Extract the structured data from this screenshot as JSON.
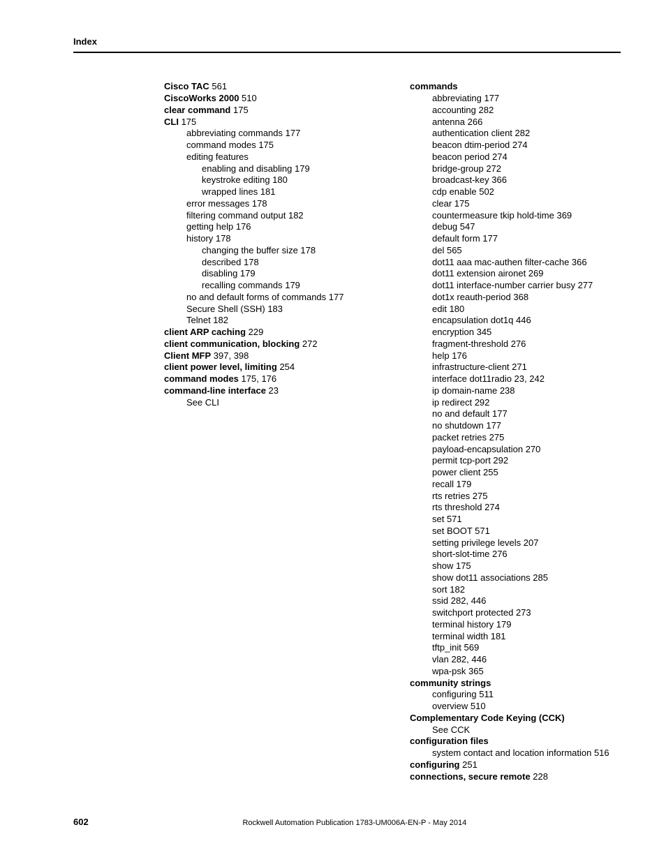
{
  "header": {
    "label": "Index"
  },
  "footer": {
    "page": "602",
    "publication": "Rockwell Automation Publication 1783-UM006A-EN-P - May 2014"
  },
  "col1": [
    {
      "bold": "Cisco TAC",
      "rest": " 561",
      "ind": 0
    },
    {
      "bold": "CiscoWorks 2000",
      "rest": " 510",
      "ind": 0
    },
    {
      "bold": "clear command",
      "rest": " 175",
      "ind": 0
    },
    {
      "bold": "CLI",
      "rest": " 175",
      "ind": 0
    },
    {
      "text": "abbreviating commands 177",
      "ind": 1
    },
    {
      "text": "command modes 175",
      "ind": 1
    },
    {
      "text": "editing features",
      "ind": 1
    },
    {
      "text": "enabling and disabling 179",
      "ind": 2
    },
    {
      "text": "keystroke editing 180",
      "ind": 2
    },
    {
      "text": "wrapped lines 181",
      "ind": 2
    },
    {
      "text": "error messages 178",
      "ind": 1
    },
    {
      "text": "filtering command output 182",
      "ind": 1
    },
    {
      "text": "getting help 176",
      "ind": 1
    },
    {
      "text": "history 178",
      "ind": 1
    },
    {
      "text": "changing the buffer size 178",
      "ind": 2
    },
    {
      "text": "described 178",
      "ind": 2
    },
    {
      "text": "disabling 179",
      "ind": 2
    },
    {
      "text": "recalling commands 179",
      "ind": 2
    },
    {
      "text": "no and default forms of commands 177",
      "ind": 1
    },
    {
      "text": "Secure Shell (SSH) 183",
      "ind": 1
    },
    {
      "text": "Telnet 182",
      "ind": 1
    },
    {
      "bold": "client ARP caching",
      "rest": " 229",
      "ind": 0
    },
    {
      "bold": "client communication, blocking",
      "rest": " 272",
      "ind": 0
    },
    {
      "bold": "Client MFP",
      "rest": " 397, 398",
      "ind": 0
    },
    {
      "bold": "client power level, limiting",
      "rest": " 254",
      "ind": 0
    },
    {
      "bold": "command modes",
      "rest": " 175, 176",
      "ind": 0
    },
    {
      "bold": "command-line interface",
      "rest": " 23",
      "ind": 0
    },
    {
      "text": "See CLI",
      "ind": 1
    }
  ],
  "col2": [
    {
      "bold": "commands",
      "rest": "",
      "ind": 0
    },
    {
      "text": "abbreviating 177",
      "ind": 1
    },
    {
      "text": "accounting 282",
      "ind": 1
    },
    {
      "text": "antenna 266",
      "ind": 1
    },
    {
      "text": "authentication client 282",
      "ind": 1
    },
    {
      "text": "beacon dtim-period 274",
      "ind": 1
    },
    {
      "text": "beacon period 274",
      "ind": 1
    },
    {
      "text": "bridge-group 272",
      "ind": 1
    },
    {
      "text": "broadcast-key 366",
      "ind": 1
    },
    {
      "text": "cdp enable 502",
      "ind": 1
    },
    {
      "text": "clear 175",
      "ind": 1
    },
    {
      "text": "countermeasure tkip hold-time 369",
      "ind": 1
    },
    {
      "text": "debug 547",
      "ind": 1
    },
    {
      "text": "default form 177",
      "ind": 1
    },
    {
      "text": "del 565",
      "ind": 1
    },
    {
      "text": "dot11 aaa mac-authen filter-cache 366",
      "ind": 1
    },
    {
      "text": "dot11 extension aironet 269",
      "ind": 1
    },
    {
      "text": "dot11 interface-number carrier busy 277",
      "ind": 1
    },
    {
      "text": "dot1x reauth-period 368",
      "ind": 1
    },
    {
      "text": "edit 180",
      "ind": 1
    },
    {
      "text": "encapsulation dot1q 446",
      "ind": 1
    },
    {
      "text": "encryption 345",
      "ind": 1
    },
    {
      "text": "fragment-threshold 276",
      "ind": 1
    },
    {
      "text": "help 176",
      "ind": 1
    },
    {
      "text": "infrastructure-client 271",
      "ind": 1
    },
    {
      "text": "interface dot11radio 23, 242",
      "ind": 1
    },
    {
      "text": "ip domain-name 238",
      "ind": 1
    },
    {
      "text": "ip redirect 292",
      "ind": 1
    },
    {
      "text": "no and default 177",
      "ind": 1
    },
    {
      "text": "no shutdown 177",
      "ind": 1
    },
    {
      "text": "packet retries 275",
      "ind": 1
    },
    {
      "text": "payload-encapsulation 270",
      "ind": 1
    },
    {
      "text": "permit tcp-port 292",
      "ind": 1
    },
    {
      "text": "power client 255",
      "ind": 1
    },
    {
      "text": "recall 179",
      "ind": 1
    },
    {
      "text": "rts retries 275",
      "ind": 1
    },
    {
      "text": "rts threshold 274",
      "ind": 1
    },
    {
      "text": "set 571",
      "ind": 1
    },
    {
      "text": "set BOOT 571",
      "ind": 1
    },
    {
      "text": "setting privilege levels 207",
      "ind": 1
    },
    {
      "text": "short-slot-time 276",
      "ind": 1
    },
    {
      "text": "show 175",
      "ind": 1
    },
    {
      "text": "show dot11 associations 285",
      "ind": 1
    },
    {
      "text": "sort 182",
      "ind": 1
    },
    {
      "text": "ssid 282, 446",
      "ind": 1
    },
    {
      "text": "switchport protected 273",
      "ind": 1
    },
    {
      "text": "terminal history 179",
      "ind": 1
    },
    {
      "text": "terminal width 181",
      "ind": 1
    },
    {
      "text": "tftp_init 569",
      "ind": 1
    },
    {
      "text": "vlan 282, 446",
      "ind": 1
    },
    {
      "text": "wpa-psk 365",
      "ind": 1
    },
    {
      "bold": "community strings",
      "rest": "",
      "ind": 0
    },
    {
      "text": "configuring 511",
      "ind": 1
    },
    {
      "text": "overview 510",
      "ind": 1
    },
    {
      "bold": "Complementary Code Keying (CCK)",
      "rest": "",
      "ind": 0
    },
    {
      "text": "See CCK",
      "ind": 1
    },
    {
      "bold": "configuration files",
      "rest": "",
      "ind": 0
    },
    {
      "text": "system contact and location information 516",
      "ind": 1
    },
    {
      "bold": "configuring",
      "rest": " 251",
      "ind": 0
    },
    {
      "bold": "connections, secure remote",
      "rest": " 228",
      "ind": 0
    }
  ]
}
